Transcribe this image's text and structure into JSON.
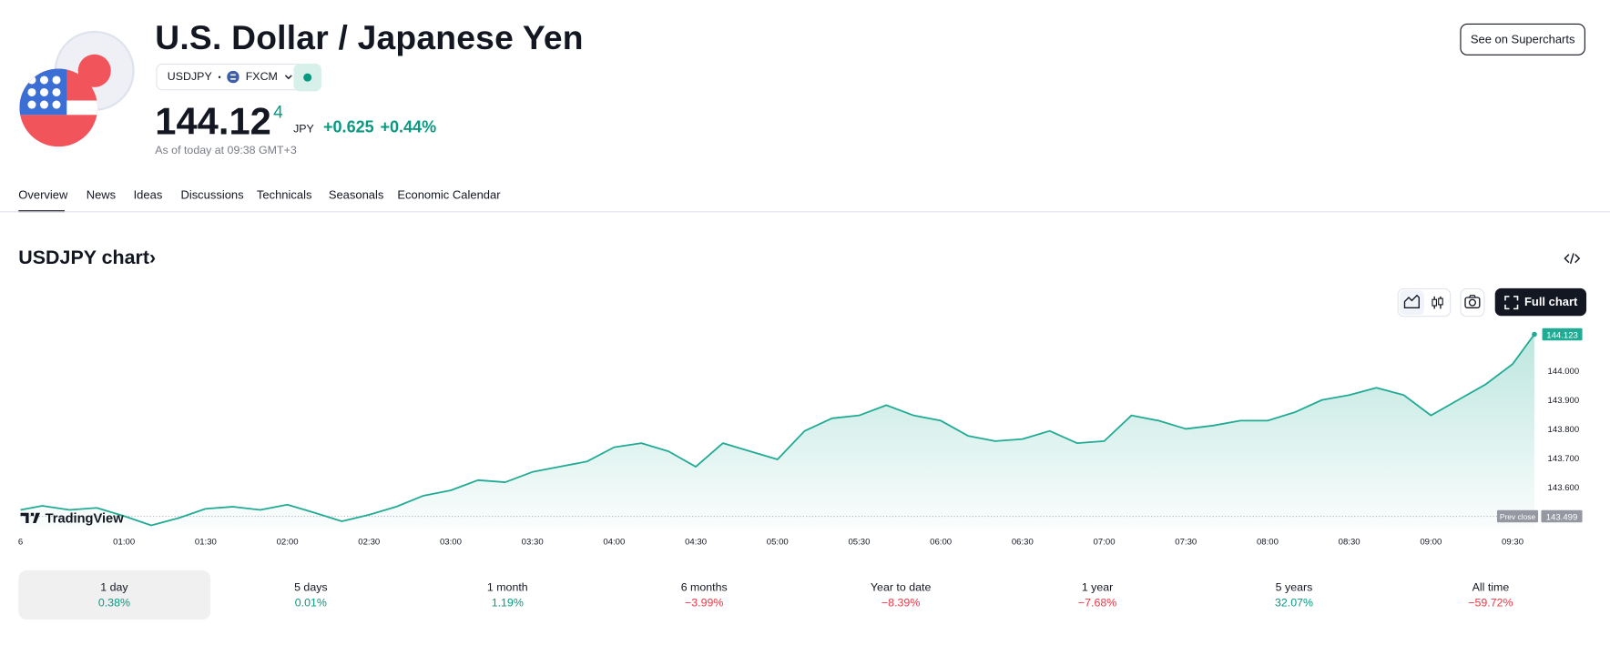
{
  "header": {
    "title": "U.S. Dollar / Japanese Yen",
    "symbol": "USDJPY",
    "exchange": "FXCM",
    "price": "144.12",
    "price_last_digit": "4",
    "currency": "JPY",
    "change": "+0.625",
    "change_percent": "+0.44%",
    "as_of": "As of today at 09:38 GMT+3",
    "button": "See on Supercharts"
  },
  "tabs": [
    "Overview",
    "News",
    "Ideas",
    "Discussions",
    "Technicals",
    "Seasonals",
    "Economic Calendar"
  ],
  "chart_section": {
    "title": "USDJPY chart",
    "full_chart": "Full chart"
  },
  "chart_data": {
    "type": "line",
    "color": "#22ab94",
    "brand": "TradingView",
    "date_label": "6",
    "x": [
      "00:22",
      "00:30",
      "00:40",
      "00:50",
      "01:00",
      "01:10",
      "01:20",
      "01:30",
      "01:40",
      "01:50",
      "02:00",
      "02:10",
      "02:20",
      "02:30",
      "02:40",
      "02:50",
      "03:00",
      "03:10",
      "03:20",
      "03:30",
      "03:40",
      "03:50",
      "04:00",
      "04:10",
      "04:20",
      "04:30",
      "04:40",
      "04:50",
      "05:00",
      "05:10",
      "05:20",
      "05:30",
      "05:40",
      "05:50",
      "06:00",
      "06:10",
      "06:20",
      "06:30",
      "06:40",
      "06:50",
      "07:00",
      "07:10",
      "07:20",
      "07:30",
      "07:40",
      "07:50",
      "08:00",
      "08:10",
      "08:20",
      "08:30",
      "08:40",
      "08:50",
      "09:00",
      "09:10",
      "09:20",
      "09:30",
      "09:38"
    ],
    "values": [
      143.521,
      143.535,
      143.521,
      143.528,
      143.5,
      143.468,
      143.493,
      143.525,
      143.532,
      143.521,
      143.539,
      143.511,
      143.482,
      143.504,
      143.532,
      143.57,
      143.588,
      143.623,
      143.616,
      143.651,
      143.669,
      143.687,
      143.736,
      143.75,
      143.722,
      143.669,
      143.75,
      143.722,
      143.694,
      143.792,
      143.835,
      143.845,
      143.88,
      143.845,
      143.827,
      143.775,
      143.757,
      143.764,
      143.792,
      143.75,
      143.757,
      143.845,
      143.827,
      143.799,
      143.81,
      143.827,
      143.827,
      143.856,
      143.898,
      143.915,
      143.94,
      143.915,
      143.845,
      143.898,
      143.951,
      144.021,
      144.123
    ],
    "xlim": [
      "00:22",
      "09:39"
    ],
    "ylim": [
      143.458,
      144.151
    ],
    "xticks": [
      "01:00",
      "01:30",
      "02:00",
      "02:30",
      "03:00",
      "03:30",
      "04:00",
      "04:30",
      "05:00",
      "05:30",
      "06:00",
      "06:30",
      "07:00",
      "07:30",
      "08:00",
      "08:30",
      "09:00",
      "09:30"
    ],
    "yticks": [
      {
        "value": 143.6,
        "label": "143.600"
      },
      {
        "value": 143.7,
        "label": "143.700"
      },
      {
        "value": 143.8,
        "label": "143.800"
      },
      {
        "value": 143.9,
        "label": "143.900"
      },
      {
        "value": 144,
        "label": "144.000"
      }
    ],
    "grid": false,
    "prev_close_label": "Prev close",
    "prev_close": 143.499
  },
  "periods": [
    {
      "label": "1 day",
      "change": "0.38%"
    },
    {
      "label": "5 days",
      "change": "0.01%"
    },
    {
      "label": "1 month",
      "change": "1.19%"
    },
    {
      "label": "6 months",
      "change": "−3.99%"
    },
    {
      "label": "Year to date",
      "change": "−8.39%"
    },
    {
      "label": "1 year",
      "change": "−7.68%"
    },
    {
      "label": "5 years",
      "change": "32.07%"
    },
    {
      "label": "All time",
      "change": "−59.72%"
    }
  ]
}
